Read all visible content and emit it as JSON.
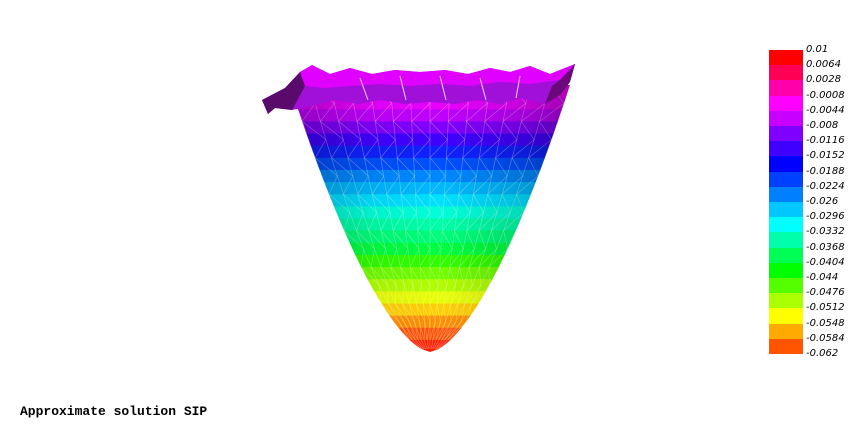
{
  "caption": "Approximate solution SIP",
  "legend": {
    "labels": [
      "0.01",
      "0.0064",
      "0.0028",
      "-0.0008",
      "-0.0044",
      "-0.008",
      "-0.0116",
      "-0.0152",
      "-0.0188",
      "-0.0224",
      "-0.026",
      "-0.0296",
      "-0.0332",
      "-0.0368",
      "-0.0404",
      "-0.044",
      "-0.0476",
      "-0.0512",
      "-0.0548",
      "-0.0584",
      "-0.062"
    ],
    "colors": [
      "#ff0000",
      "#ff0055",
      "#ff00aa",
      "#ff00ff",
      "#c800ff",
      "#8000ff",
      "#4000ff",
      "#0000ff",
      "#0040ff",
      "#0080ff",
      "#00c8ff",
      "#00ffff",
      "#00ffaa",
      "#00ff55",
      "#00ff00",
      "#55ff00",
      "#aaff00",
      "#ffff00",
      "#ffaa00",
      "#ff5500",
      "#ff0000"
    ]
  },
  "surface": {
    "bands": [
      "#ff00ff",
      "#e800ff",
      "#c000ff",
      "#8000ff",
      "#4000ff",
      "#1020ff",
      "#0050ff",
      "#0088ff",
      "#00b8ff",
      "#00e0ff",
      "#00ffd8",
      "#00ffa8",
      "#00ff78",
      "#00ff40",
      "#30ff00",
      "#70ff00",
      "#b0ff00",
      "#e8ff00",
      "#ffd000",
      "#ff9000",
      "#ff5000",
      "#ff2000"
    ]
  }
}
